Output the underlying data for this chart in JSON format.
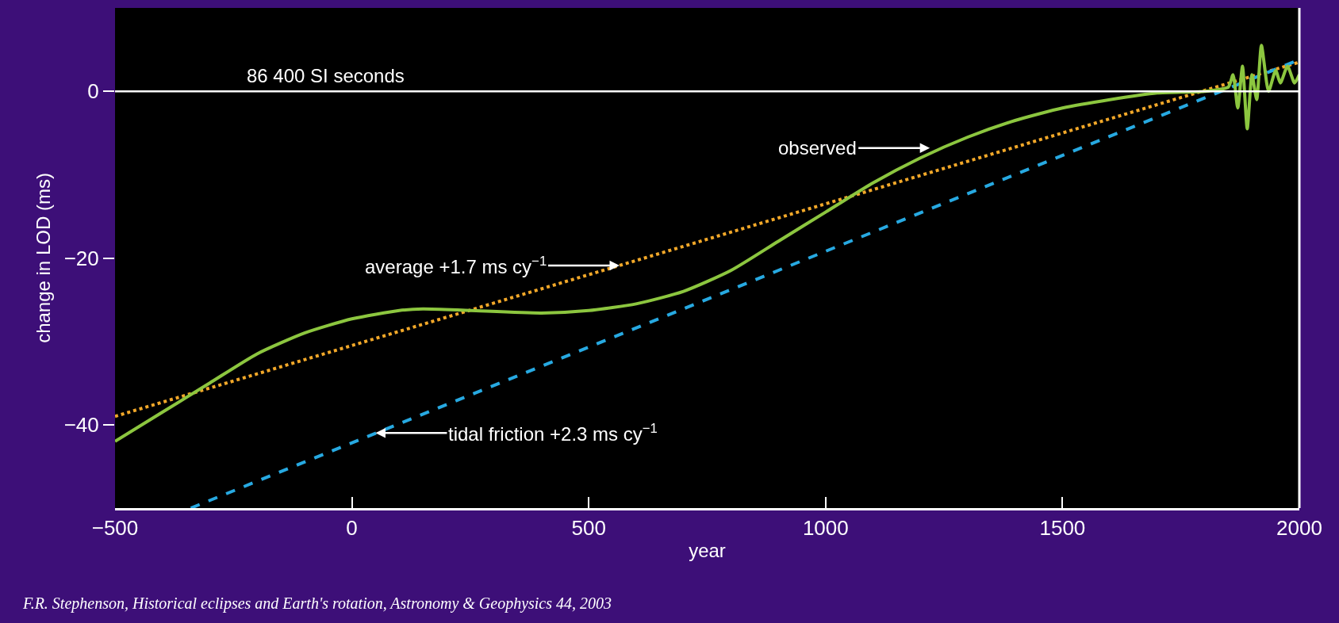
{
  "chart_data": {
    "type": "line",
    "xlabel": "year",
    "ylabel": "change in LOD (ms)",
    "xlim": [
      -500,
      2000
    ],
    "xticks": [
      {
        "value": -500,
        "label": "−500"
      },
      0,
      500,
      1000,
      1500,
      2000
    ],
    "ylim": [
      -50,
      10
    ],
    "yticks": [
      {
        "value": -40,
        "label": "−40"
      },
      {
        "value": -20,
        "label": "−20"
      },
      0
    ],
    "grid": false,
    "series": [
      {
        "line_style": "dotted",
        "color": "#f2a829",
        "x": [
          -500,
          2000
        ],
        "values": [
          -39,
          3.5
        ]
      },
      {
        "line_style": "dashed",
        "color": "#27a9e1",
        "x": [
          -340,
          2000
        ],
        "values": [
          -50,
          3.8
        ]
      },
      {
        "line_style": "solid",
        "color": "#8cc63f",
        "x": [
          -500,
          -400,
          -300,
          -200,
          -100,
          0,
          100,
          150,
          250,
          400,
          500,
          600,
          700,
          800,
          900,
          1000,
          1100,
          1200,
          1300,
          1400,
          1500,
          1600,
          1700,
          1800,
          1850,
          1860,
          1870,
          1880,
          1890,
          1900,
          1910,
          1920,
          1935,
          1950,
          1960,
          1975,
          1990,
          2000
        ],
        "values": [
          -42,
          -38.5,
          -35,
          -31.5,
          -29,
          -27.3,
          -26.3,
          -26.1,
          -26.3,
          -26.6,
          -26.3,
          -25.5,
          -24,
          -21.5,
          -18,
          -14.5,
          -11,
          -8,
          -5.5,
          -3.5,
          -2,
          -1,
          -0.2,
          0,
          0.5,
          2,
          -2,
          3,
          -4.5,
          2,
          -1,
          5.5,
          0,
          2.5,
          1,
          3,
          1,
          2
        ]
      }
    ],
    "ref_lines": [
      {
        "axis": "y",
        "value": 0,
        "label": "86 400 SI seconds",
        "color": "#ffffff",
        "line_style": "solid"
      }
    ],
    "annotations": [
      {
        "text": "observed",
        "x": 1220,
        "y": -6.8
      },
      {
        "text": "average +1.7 ms cy$^{−1}$",
        "x": 565,
        "y": -20.9
      },
      {
        "text": "tidal friction +2.3 ms cy$^{−1}$",
        "x": 50,
        "y": -41
      },
      "F.R. Stephenson, Historical eclipses and Earth's rotation, Astronomy & Geophysics 44, 2003"
    ]
  }
}
